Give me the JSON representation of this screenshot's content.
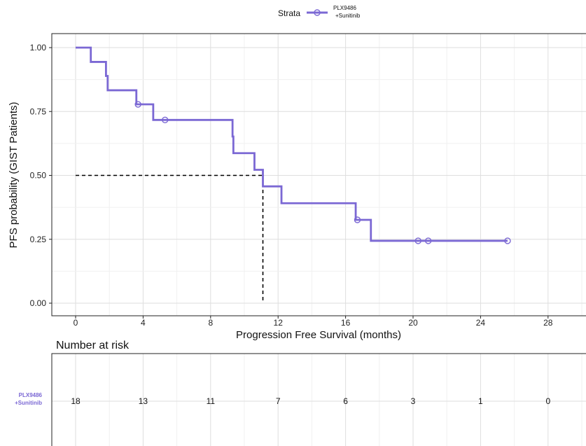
{
  "chart_data": {
    "type": "line",
    "subtype": "kaplan-meier",
    "title": "",
    "xlabel": "Progression Free Survival (months)",
    "ylabel": "PFS probability (GIST Patients)",
    "xlim": [
      -1.5,
      30
    ],
    "ylim": [
      -0.05,
      1.1
    ],
    "x_ticks": [
      0,
      4,
      8,
      12,
      16,
      20,
      24,
      28
    ],
    "y_ticks": [
      0.0,
      0.25,
      0.5,
      0.75,
      1.0
    ],
    "y_tick_labels": [
      "0.00",
      "0.25",
      "0.50",
      "0.75",
      "1.00"
    ],
    "grid": true,
    "legend": {
      "title": "Strata",
      "position": "top",
      "entries": [
        {
          "label_line1": "PLX9486",
          "label_line2": "+Sunitinib"
        }
      ]
    },
    "series": [
      {
        "name": "PLX9486 +Sunitinib",
        "color": "#7b68d4",
        "steps": [
          [
            0,
            1.0
          ],
          [
            0.9,
            0.944
          ],
          [
            1.8,
            0.889
          ],
          [
            1.9,
            0.833
          ],
          [
            3.6,
            0.778
          ],
          [
            4.6,
            0.717
          ],
          [
            9.3,
            0.652
          ],
          [
            9.35,
            0.587
          ],
          [
            10.6,
            0.522
          ],
          [
            11.1,
            0.457
          ],
          [
            12.2,
            0.391
          ],
          [
            16.6,
            0.326
          ],
          [
            17.5,
            0.244
          ],
          [
            25.6,
            0.244
          ]
        ],
        "censored": [
          [
            3.7,
            0.778
          ],
          [
            5.3,
            0.717
          ],
          [
            16.7,
            0.326
          ],
          [
            20.3,
            0.244
          ],
          [
            20.9,
            0.244
          ],
          [
            25.6,
            0.244
          ]
        ]
      }
    ],
    "median_line": {
      "x": 11.1,
      "y": 0.5,
      "style": "dashed",
      "color": "#000000"
    },
    "risk_table": {
      "title": "Number at risk",
      "strata_label_line1": "PLX9486",
      "strata_label_line2": "+Sunitinib",
      "strata_color": "#7b68d4",
      "times": [
        0,
        4,
        8,
        12,
        16,
        20,
        24,
        28
      ],
      "counts": [
        "18",
        "13",
        "11",
        "7",
        "6",
        "3",
        "1",
        "0"
      ]
    }
  }
}
